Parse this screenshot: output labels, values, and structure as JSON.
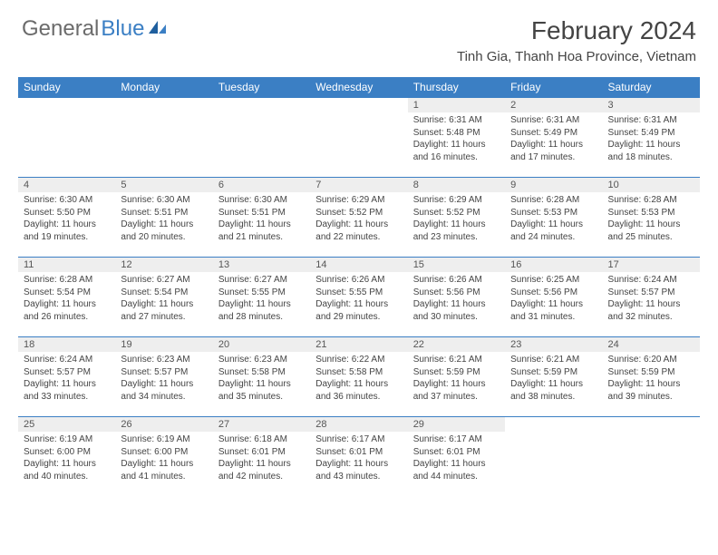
{
  "logo": {
    "text1": "General",
    "text2": "Blue"
  },
  "title": "February 2024",
  "location": "Tinh Gia, Thanh Hoa Province, Vietnam",
  "columns": [
    "Sunday",
    "Monday",
    "Tuesday",
    "Wednesday",
    "Thursday",
    "Friday",
    "Saturday"
  ],
  "colors": {
    "header_bg": "#3b7fc4",
    "header_text": "#ffffff",
    "daynum_bg": "#eeeeee",
    "rule": "#3b7fc4",
    "body_text": "#444444",
    "logo_gray": "#6b6b6b",
    "logo_blue": "#3b7fc4"
  },
  "typography": {
    "title_fontsize": 28,
    "location_fontsize": 15,
    "header_fontsize": 12,
    "daynum_fontsize": 11,
    "body_fontsize": 10
  },
  "weeks": [
    [
      {
        "n": "",
        "sunrise": "",
        "sunset": "",
        "daylight1": "",
        "daylight2": ""
      },
      {
        "n": "",
        "sunrise": "",
        "sunset": "",
        "daylight1": "",
        "daylight2": ""
      },
      {
        "n": "",
        "sunrise": "",
        "sunset": "",
        "daylight1": "",
        "daylight2": ""
      },
      {
        "n": "",
        "sunrise": "",
        "sunset": "",
        "daylight1": "",
        "daylight2": ""
      },
      {
        "n": "1",
        "sunrise": "Sunrise: 6:31 AM",
        "sunset": "Sunset: 5:48 PM",
        "daylight1": "Daylight: 11 hours",
        "daylight2": "and 16 minutes."
      },
      {
        "n": "2",
        "sunrise": "Sunrise: 6:31 AM",
        "sunset": "Sunset: 5:49 PM",
        "daylight1": "Daylight: 11 hours",
        "daylight2": "and 17 minutes."
      },
      {
        "n": "3",
        "sunrise": "Sunrise: 6:31 AM",
        "sunset": "Sunset: 5:49 PM",
        "daylight1": "Daylight: 11 hours",
        "daylight2": "and 18 minutes."
      }
    ],
    [
      {
        "n": "4",
        "sunrise": "Sunrise: 6:30 AM",
        "sunset": "Sunset: 5:50 PM",
        "daylight1": "Daylight: 11 hours",
        "daylight2": "and 19 minutes."
      },
      {
        "n": "5",
        "sunrise": "Sunrise: 6:30 AM",
        "sunset": "Sunset: 5:51 PM",
        "daylight1": "Daylight: 11 hours",
        "daylight2": "and 20 minutes."
      },
      {
        "n": "6",
        "sunrise": "Sunrise: 6:30 AM",
        "sunset": "Sunset: 5:51 PM",
        "daylight1": "Daylight: 11 hours",
        "daylight2": "and 21 minutes."
      },
      {
        "n": "7",
        "sunrise": "Sunrise: 6:29 AM",
        "sunset": "Sunset: 5:52 PM",
        "daylight1": "Daylight: 11 hours",
        "daylight2": "and 22 minutes."
      },
      {
        "n": "8",
        "sunrise": "Sunrise: 6:29 AM",
        "sunset": "Sunset: 5:52 PM",
        "daylight1": "Daylight: 11 hours",
        "daylight2": "and 23 minutes."
      },
      {
        "n": "9",
        "sunrise": "Sunrise: 6:28 AM",
        "sunset": "Sunset: 5:53 PM",
        "daylight1": "Daylight: 11 hours",
        "daylight2": "and 24 minutes."
      },
      {
        "n": "10",
        "sunrise": "Sunrise: 6:28 AM",
        "sunset": "Sunset: 5:53 PM",
        "daylight1": "Daylight: 11 hours",
        "daylight2": "and 25 minutes."
      }
    ],
    [
      {
        "n": "11",
        "sunrise": "Sunrise: 6:28 AM",
        "sunset": "Sunset: 5:54 PM",
        "daylight1": "Daylight: 11 hours",
        "daylight2": "and 26 minutes."
      },
      {
        "n": "12",
        "sunrise": "Sunrise: 6:27 AM",
        "sunset": "Sunset: 5:54 PM",
        "daylight1": "Daylight: 11 hours",
        "daylight2": "and 27 minutes."
      },
      {
        "n": "13",
        "sunrise": "Sunrise: 6:27 AM",
        "sunset": "Sunset: 5:55 PM",
        "daylight1": "Daylight: 11 hours",
        "daylight2": "and 28 minutes."
      },
      {
        "n": "14",
        "sunrise": "Sunrise: 6:26 AM",
        "sunset": "Sunset: 5:55 PM",
        "daylight1": "Daylight: 11 hours",
        "daylight2": "and 29 minutes."
      },
      {
        "n": "15",
        "sunrise": "Sunrise: 6:26 AM",
        "sunset": "Sunset: 5:56 PM",
        "daylight1": "Daylight: 11 hours",
        "daylight2": "and 30 minutes."
      },
      {
        "n": "16",
        "sunrise": "Sunrise: 6:25 AM",
        "sunset": "Sunset: 5:56 PM",
        "daylight1": "Daylight: 11 hours",
        "daylight2": "and 31 minutes."
      },
      {
        "n": "17",
        "sunrise": "Sunrise: 6:24 AM",
        "sunset": "Sunset: 5:57 PM",
        "daylight1": "Daylight: 11 hours",
        "daylight2": "and 32 minutes."
      }
    ],
    [
      {
        "n": "18",
        "sunrise": "Sunrise: 6:24 AM",
        "sunset": "Sunset: 5:57 PM",
        "daylight1": "Daylight: 11 hours",
        "daylight2": "and 33 minutes."
      },
      {
        "n": "19",
        "sunrise": "Sunrise: 6:23 AM",
        "sunset": "Sunset: 5:57 PM",
        "daylight1": "Daylight: 11 hours",
        "daylight2": "and 34 minutes."
      },
      {
        "n": "20",
        "sunrise": "Sunrise: 6:23 AM",
        "sunset": "Sunset: 5:58 PM",
        "daylight1": "Daylight: 11 hours",
        "daylight2": "and 35 minutes."
      },
      {
        "n": "21",
        "sunrise": "Sunrise: 6:22 AM",
        "sunset": "Sunset: 5:58 PM",
        "daylight1": "Daylight: 11 hours",
        "daylight2": "and 36 minutes."
      },
      {
        "n": "22",
        "sunrise": "Sunrise: 6:21 AM",
        "sunset": "Sunset: 5:59 PM",
        "daylight1": "Daylight: 11 hours",
        "daylight2": "and 37 minutes."
      },
      {
        "n": "23",
        "sunrise": "Sunrise: 6:21 AM",
        "sunset": "Sunset: 5:59 PM",
        "daylight1": "Daylight: 11 hours",
        "daylight2": "and 38 minutes."
      },
      {
        "n": "24",
        "sunrise": "Sunrise: 6:20 AM",
        "sunset": "Sunset: 5:59 PM",
        "daylight1": "Daylight: 11 hours",
        "daylight2": "and 39 minutes."
      }
    ],
    [
      {
        "n": "25",
        "sunrise": "Sunrise: 6:19 AM",
        "sunset": "Sunset: 6:00 PM",
        "daylight1": "Daylight: 11 hours",
        "daylight2": "and 40 minutes."
      },
      {
        "n": "26",
        "sunrise": "Sunrise: 6:19 AM",
        "sunset": "Sunset: 6:00 PM",
        "daylight1": "Daylight: 11 hours",
        "daylight2": "and 41 minutes."
      },
      {
        "n": "27",
        "sunrise": "Sunrise: 6:18 AM",
        "sunset": "Sunset: 6:01 PM",
        "daylight1": "Daylight: 11 hours",
        "daylight2": "and 42 minutes."
      },
      {
        "n": "28",
        "sunrise": "Sunrise: 6:17 AM",
        "sunset": "Sunset: 6:01 PM",
        "daylight1": "Daylight: 11 hours",
        "daylight2": "and 43 minutes."
      },
      {
        "n": "29",
        "sunrise": "Sunrise: 6:17 AM",
        "sunset": "Sunset: 6:01 PM",
        "daylight1": "Daylight: 11 hours",
        "daylight2": "and 44 minutes."
      },
      {
        "n": "",
        "sunrise": "",
        "sunset": "",
        "daylight1": "",
        "daylight2": ""
      },
      {
        "n": "",
        "sunrise": "",
        "sunset": "",
        "daylight1": "",
        "daylight2": ""
      }
    ]
  ]
}
